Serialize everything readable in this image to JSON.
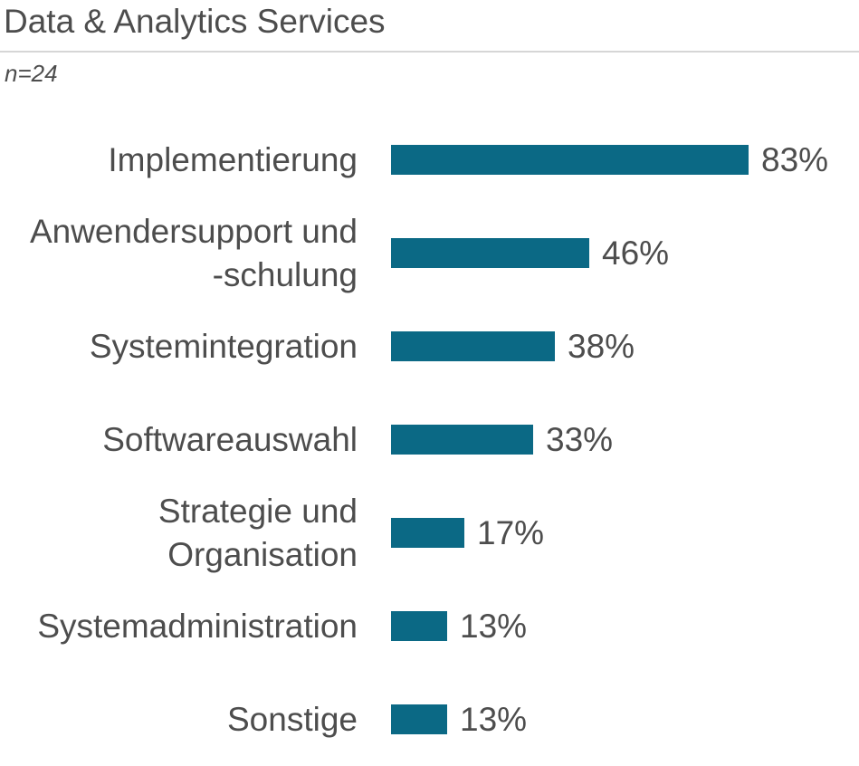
{
  "header": {
    "title": "Data & Analytics Services",
    "subtitle": "n=24"
  },
  "chart_data": {
    "type": "bar",
    "orientation": "horizontal",
    "title": "Data & Analytics Services",
    "sample_size_note": "n=24",
    "categories": [
      "Implementierung",
      "Anwendersupport und\n-schulung",
      "Systemintegration",
      "Softwareauswahl",
      "Strategie und\nOrganisation",
      "Systemadministration",
      "Sonstige"
    ],
    "values": [
      83,
      46,
      38,
      33,
      17,
      13,
      13
    ],
    "value_labels": [
      "83%",
      "46%",
      "38%",
      "33%",
      "17%",
      "13%",
      "13%"
    ],
    "unit": "%",
    "xlim": [
      0,
      100
    ],
    "grid": false,
    "legend": false,
    "bar_color": "#0b6985",
    "label_color": "#4d4d4d"
  }
}
